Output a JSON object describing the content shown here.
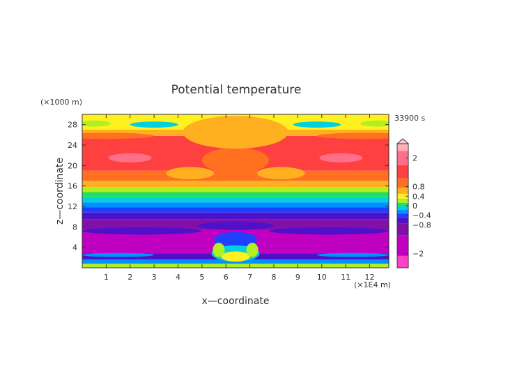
{
  "chart_data": {
    "type": "heatmap",
    "title": "Potential temperature",
    "xlabel": "x—coordinate",
    "ylabel": "z—coordinate",
    "x_unit": "(×1E4 m)",
    "y_unit": "(×1000 m)",
    "time_label": "33900 s",
    "xlim": [
      0,
      12.8
    ],
    "ylim": [
      0,
      30
    ],
    "x_ticks": [
      1,
      2,
      3,
      4,
      5,
      6,
      7,
      8,
      9,
      10,
      11,
      12
    ],
    "y_ticks": [
      4,
      8,
      12,
      16,
      20,
      24,
      28
    ],
    "colorbar": {
      "tick_labels": [
        "2",
        "0.8",
        "0.4",
        "0",
        "−0.4",
        "−0.8",
        "−2"
      ],
      "tick_values": [
        2,
        0.8,
        0.4,
        0,
        -0.4,
        -0.8,
        -2
      ],
      "colors": [
        {
          "value": -2.6,
          "color": "#ff40c8"
        },
        {
          "value": -1.6,
          "color": "#c000c0"
        },
        {
          "value": -0.9,
          "color": "#8010a8"
        },
        {
          "value": -0.6,
          "color": "#5010c8"
        },
        {
          "value": -0.4,
          "color": "#2040ff"
        },
        {
          "value": -0.25,
          "color": "#0090ff"
        },
        {
          "value": -0.1,
          "color": "#00d0e0"
        },
        {
          "value": 0.05,
          "color": "#20e060"
        },
        {
          "value": 0.2,
          "color": "#b0f020"
        },
        {
          "value": 0.4,
          "color": "#fff020"
        },
        {
          "value": 0.6,
          "color": "#ffb020"
        },
        {
          "value": 0.9,
          "color": "#ff7020"
        },
        {
          "value": 1.4,
          "color": "#ff4040"
        },
        {
          "value": 2.0,
          "color": "#ff7088"
        },
        {
          "value": 2.6,
          "color": "#ffb0b8"
        }
      ]
    },
    "bands": [
      {
        "z0": 0,
        "z1": 0.8,
        "value": 0.2
      },
      {
        "z0": 0.8,
        "z1": 1.6,
        "value": -0.25
      },
      {
        "z0": 1.6,
        "z1": 2.8,
        "value": -0.6
      },
      {
        "z0": 2.8,
        "z1": 7.5,
        "value": -1.6
      },
      {
        "z0": 7.5,
        "z1": 9.5,
        "value": -0.9
      },
      {
        "z0": 9.5,
        "z1": 10.8,
        "value": -0.6
      },
      {
        "z0": 10.8,
        "z1": 11.8,
        "value": -0.4
      },
      {
        "z0": 11.8,
        "z1": 12.8,
        "value": -0.25
      },
      {
        "z0": 12.8,
        "z1": 13.8,
        "value": -0.1
      },
      {
        "z0": 13.8,
        "z1": 14.8,
        "value": 0.05
      },
      {
        "z0": 14.8,
        "z1": 15.8,
        "value": 0.2
      },
      {
        "z0": 15.8,
        "z1": 17,
        "value": 0.6
      },
      {
        "z0": 17,
        "z1": 19,
        "value": 0.9
      },
      {
        "z0": 19,
        "z1": 24,
        "value": 1.4
      },
      {
        "z0": 24,
        "z1": 25.8,
        "value": 1.4
      },
      {
        "z0": 25.8,
        "z1": 27,
        "value": 0.6
      },
      {
        "z0": 27,
        "z1": 30,
        "value": 0.4
      }
    ],
    "features": [
      {
        "cx": 6.4,
        "cz": 21,
        "rx": 1.4,
        "rz": 2.5,
        "value": 0.9
      },
      {
        "cx": 6.4,
        "cz": 26.5,
        "rx": 2.2,
        "rz": 3.2,
        "value": 0.6
      },
      {
        "cx": 2.0,
        "cz": 21.5,
        "rx": 0.9,
        "rz": 0.9,
        "value": 2.0
      },
      {
        "cx": 10.8,
        "cz": 21.5,
        "rx": 0.9,
        "rz": 0.9,
        "value": 2.0
      },
      {
        "cx": 1.0,
        "cz": 25.8,
        "rx": 2.0,
        "rz": 0.6,
        "value": 0.9
      },
      {
        "cx": 11.8,
        "cz": 25.8,
        "rx": 2.0,
        "rz": 0.6,
        "value": 0.9
      },
      {
        "cx": 4.5,
        "cz": 18.5,
        "rx": 1.0,
        "rz": 1.2,
        "value": 0.6
      },
      {
        "cx": 8.3,
        "cz": 18.5,
        "rx": 1.0,
        "rz": 1.2,
        "value": 0.6
      },
      {
        "cx": 3.0,
        "cz": 28,
        "rx": 1.0,
        "rz": 0.6,
        "value": -0.1
      },
      {
        "cx": 9.8,
        "cz": 28,
        "rx": 1.0,
        "rz": 0.6,
        "value": -0.1
      },
      {
        "cx": 0.5,
        "cz": 28.2,
        "rx": 0.7,
        "rz": 0.6,
        "value": 0.2
      },
      {
        "cx": 12.3,
        "cz": 28.2,
        "rx": 0.7,
        "rz": 0.6,
        "value": 0.2
      },
      {
        "cx": 6.4,
        "cz": 8.2,
        "rx": 1.6,
        "rz": 0.8,
        "value": -0.6
      },
      {
        "cx": 2.5,
        "cz": 7.2,
        "rx": 2.5,
        "rz": 0.7,
        "value": -0.6
      },
      {
        "cx": 10.3,
        "cz": 7.2,
        "rx": 2.5,
        "rz": 0.7,
        "value": -0.6
      },
      {
        "cx": 6.4,
        "cz": 5.5,
        "rx": 0.9,
        "rz": 1.5,
        "value": -0.4
      },
      {
        "cx": 6.4,
        "cz": 2.8,
        "rx": 1.0,
        "rz": 1.6,
        "value": -0.1
      },
      {
        "cx": 6.4,
        "cz": 2.2,
        "rx": 0.6,
        "rz": 1.0,
        "value": 0.4
      },
      {
        "cx": 5.7,
        "cz": 3.5,
        "rx": 0.25,
        "rz": 1.4,
        "value": 0.2
      },
      {
        "cx": 7.1,
        "cz": 3.5,
        "rx": 0.25,
        "rz": 1.4,
        "value": 0.2
      },
      {
        "cx": 1.5,
        "cz": 2.5,
        "rx": 1.5,
        "rz": 0.4,
        "value": -0.25
      },
      {
        "cx": 11.3,
        "cz": 2.5,
        "rx": 1.5,
        "rz": 0.4,
        "value": -0.25
      }
    ]
  }
}
